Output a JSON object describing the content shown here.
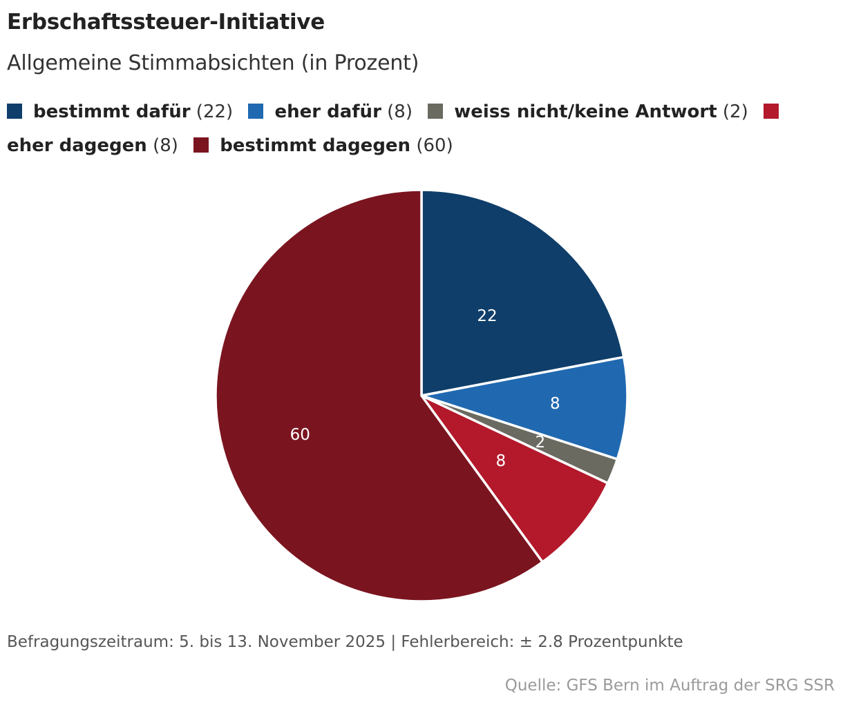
{
  "title": "Erbschaftssteuer-Initiative",
  "subtitle": "Allgemeine Stimmabsichten (in Prozent)",
  "legend_items": [
    {
      "label": "bestimmt dafür",
      "value_text": "(22)"
    },
    {
      "label": "eher dafür",
      "value_text": "(8)"
    },
    {
      "label": "weiss nicht/keine Antwort",
      "value_text": "(2)"
    },
    {
      "label": "eher dagegen",
      "value_text": "(8)"
    },
    {
      "label": "bestimmt dagegen",
      "value_text": "(60)"
    }
  ],
  "chart_data": {
    "type": "pie",
    "categories": [
      "bestimmt dafür",
      "eher dafür",
      "weiss nicht/keine Antwort",
      "eher dagegen",
      "bestimmt dagegen"
    ],
    "values": [
      22,
      8,
      2,
      8,
      60
    ],
    "data_labels": [
      "22",
      "8",
      "2",
      "8",
      "60"
    ],
    "colors": [
      "#0f3e6a",
      "#2069b1",
      "#6b6a61",
      "#b3192b",
      "#7a1520"
    ],
    "legend_position": "top"
  },
  "footer": {
    "note": "Befragungszeitraum: 5. bis 13. November 2025 | Fehlerbereich: ± 2.8 Prozentpunkte",
    "source": "Quelle: GFS Bern im Auftrag der SRG SSR"
  }
}
